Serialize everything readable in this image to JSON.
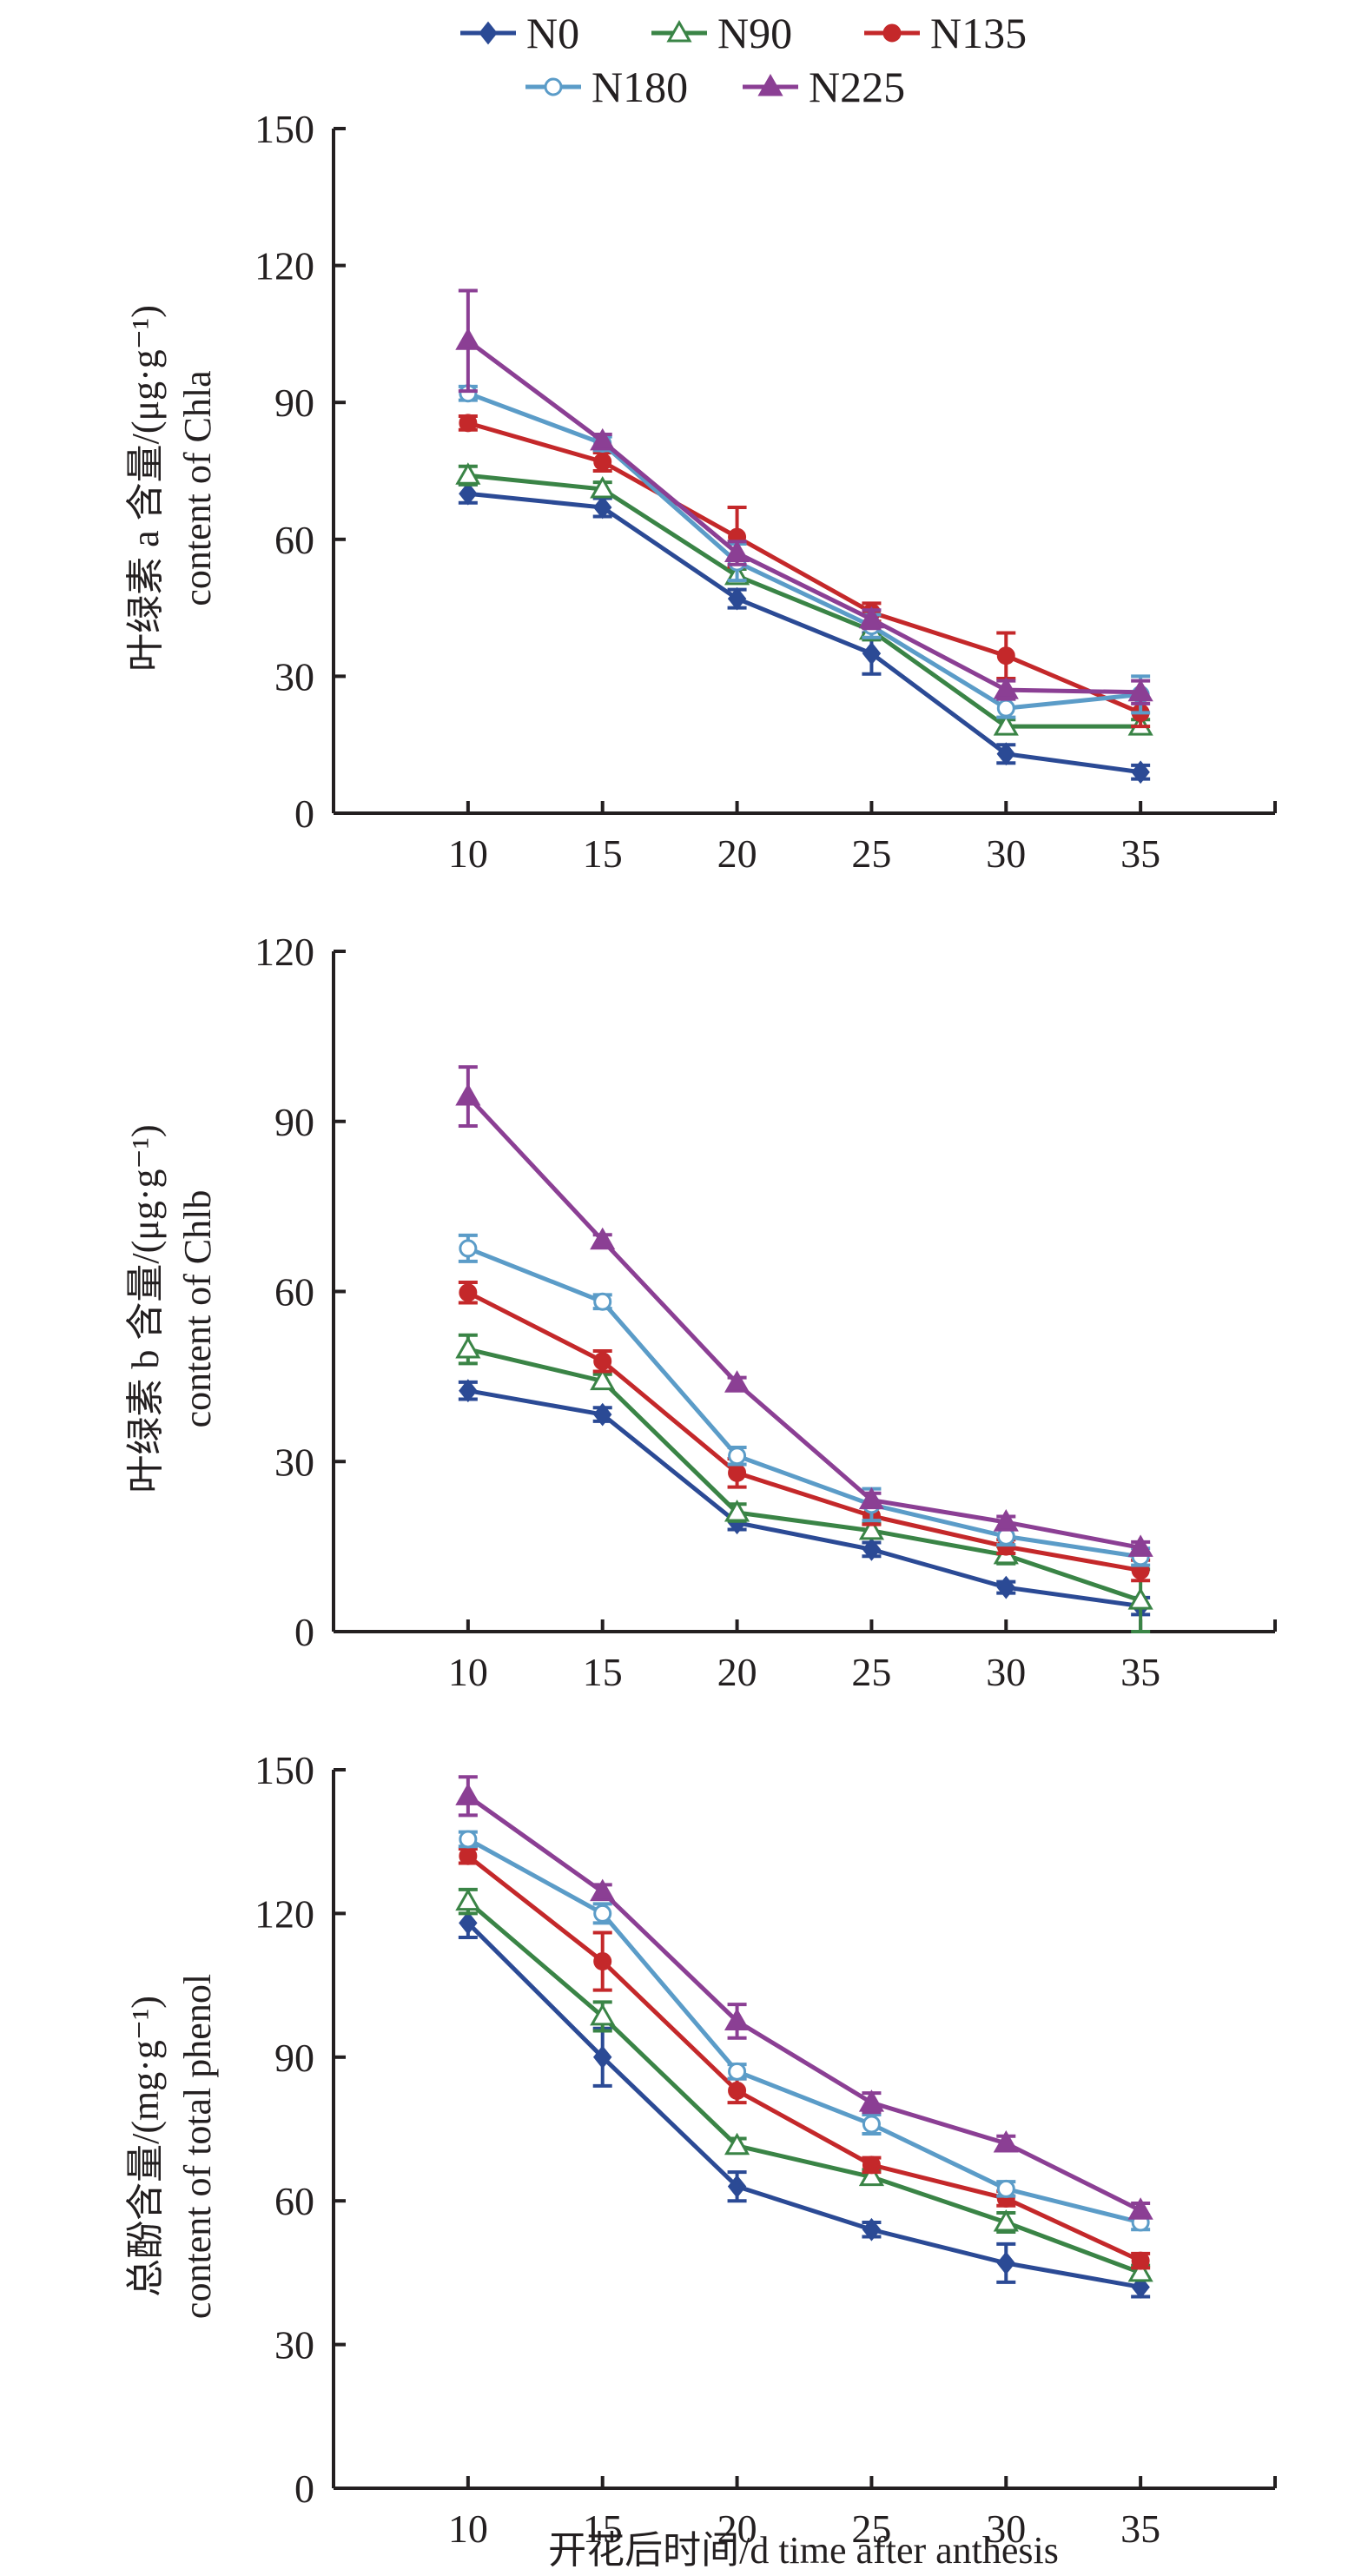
{
  "legend": [
    {
      "name": "N0",
      "color": "#2b4a95",
      "marker": "diamond",
      "filled": true
    },
    {
      "name": "N90",
      "color": "#3a8446",
      "marker": "triangle",
      "filled": false
    },
    {
      "name": "N135",
      "color": "#c4282a",
      "marker": "circle",
      "filled": true
    },
    {
      "name": "N180",
      "color": "#5b9cc8",
      "marker": "circle",
      "filled": false
    },
    {
      "name": "N225",
      "color": "#8b3f94",
      "marker": "triangle",
      "filled": true
    }
  ],
  "x_axis_title": "开花后时间/d time after anthesis",
  "chart_data": [
    {
      "type": "line",
      "title": "",
      "ylabel_cn": "叶绿素 a 含量/(μg·g⁻¹)",
      "ylabel_en": "content of Chla",
      "xlabel": "开花后时间/d time after anthesis",
      "x": [
        10,
        15,
        20,
        25,
        30,
        35
      ],
      "xlim": [
        5,
        40
      ],
      "ylim": [
        0,
        150
      ],
      "yticks": [
        0,
        30,
        60,
        90,
        120,
        150
      ],
      "xticks": [
        10,
        15,
        20,
        25,
        30,
        35
      ],
      "grid": false,
      "series": [
        {
          "name": "N0",
          "values": [
            70,
            67,
            47,
            35,
            13,
            9
          ],
          "errors": [
            2,
            2,
            2,
            4.5,
            2,
            1.5
          ]
        },
        {
          "name": "N90",
          "values": [
            74,
            71,
            52,
            40,
            19,
            19
          ],
          "errors": [
            2,
            1.5,
            1.5,
            2,
            1.5,
            1.5
          ]
        },
        {
          "name": "N135",
          "values": [
            85.5,
            77,
            60.5,
            44,
            34.5,
            22
          ],
          "errors": [
            1.5,
            2,
            6.5,
            2,
            5,
            3
          ]
        },
        {
          "name": "N180",
          "values": [
            92,
            81,
            55,
            41,
            23,
            26
          ],
          "errors": [
            1.5,
            1.5,
            4,
            2.5,
            2,
            4
          ]
        },
        {
          "name": "N225",
          "values": [
            103.5,
            81.5,
            57,
            42.5,
            27,
            26.5
          ],
          "errors": [
            11,
            1.5,
            2.5,
            2,
            2,
            2.5
          ]
        }
      ]
    },
    {
      "type": "line",
      "title": "",
      "ylabel_cn": "叶绿素 b 含量/(μg·g⁻¹)",
      "ylabel_en": "content of Chlb",
      "xlabel": "开花后时间/d time after anthesis",
      "x": [
        10,
        15,
        20,
        25,
        30,
        35
      ],
      "xlim": [
        5,
        40
      ],
      "ylim": [
        0,
        120
      ],
      "yticks": [
        0,
        30,
        60,
        90,
        120
      ],
      "xticks": [
        10,
        15,
        20,
        25,
        30,
        35
      ],
      "grid": false,
      "series": [
        {
          "name": "N0",
          "values": [
            42.5,
            38.3,
            19.2,
            14.5,
            7.8,
            4.5
          ],
          "errors": [
            1.5,
            1.2,
            1.2,
            1.2,
            1.0,
            1.5
          ]
        },
        {
          "name": "N90",
          "values": [
            49.8,
            44.2,
            21,
            17.8,
            13.5,
            5.5
          ],
          "errors": [
            2.5,
            1.2,
            1.5,
            1.2,
            1.5,
            5.5
          ]
        },
        {
          "name": "N135",
          "values": [
            59.8,
            47.7,
            28,
            20.4,
            15,
            10.8
          ],
          "errors": [
            1.8,
            1.8,
            2.5,
            1.5,
            1.2,
            1.8
          ]
        },
        {
          "name": "N180",
          "values": [
            67.6,
            58.2,
            31,
            22.4,
            16.8,
            13.2
          ],
          "errors": [
            2.3,
            1.2,
            1.5,
            2.8,
            1.5,
            1.5
          ]
        },
        {
          "name": "N225",
          "values": [
            94.4,
            69,
            43.8,
            23.2,
            19.3,
            14.8
          ],
          "errors": [
            5.2,
            1.0,
            1.0,
            1.2,
            1.0,
            1.0
          ]
        }
      ]
    },
    {
      "type": "line",
      "title": "",
      "ylabel_cn": "总酚含量/(mg·g⁻¹)",
      "ylabel_en": "content of total phenol",
      "xlabel": "开花后时间/d time after anthesis",
      "x": [
        10,
        15,
        20,
        25,
        30,
        35
      ],
      "xlim": [
        5,
        40
      ],
      "ylim": [
        0,
        150
      ],
      "yticks": [
        0,
        30,
        60,
        90,
        120,
        150
      ],
      "xticks": [
        10,
        15,
        20,
        25,
        30,
        35
      ],
      "grid": false,
      "series": [
        {
          "name": "N0",
          "values": [
            118,
            90,
            63,
            54,
            47,
            42
          ],
          "errors": [
            3,
            6,
            3,
            1.5,
            4,
            2
          ]
        },
        {
          "name": "N90",
          "values": [
            122.5,
            98.5,
            71.5,
            65,
            55.5,
            45
          ],
          "errors": [
            2.5,
            3,
            1.5,
            1.5,
            2,
            1.5
          ]
        },
        {
          "name": "N135",
          "values": [
            132,
            110,
            83,
            67.5,
            60.5,
            47.5
          ],
          "errors": [
            1.5,
            6,
            2.5,
            1.5,
            1.5,
            1.5
          ]
        },
        {
          "name": "N180",
          "values": [
            135.5,
            120,
            87,
            76,
            62.5,
            55.5
          ],
          "errors": [
            1.5,
            2,
            1.5,
            2,
            1.5,
            1.5
          ]
        },
        {
          "name": "N225",
          "values": [
            144.5,
            124.5,
            97.5,
            80.5,
            72,
            58
          ],
          "errors": [
            4,
            1.5,
            3.5,
            2,
            1.5,
            1.5
          ]
        }
      ]
    }
  ]
}
